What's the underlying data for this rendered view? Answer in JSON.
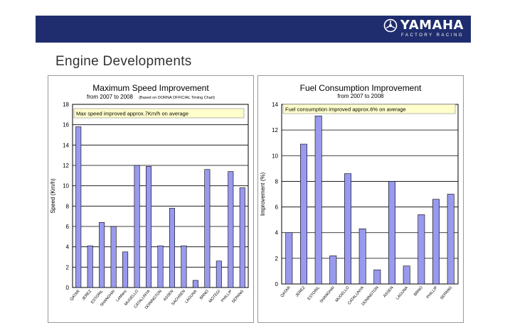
{
  "brand": {
    "name": "YAMAHA",
    "sub": "FACTORY RACING",
    "accent": "#1f2d6e"
  },
  "page": {
    "title": "Engine Developments"
  },
  "chart_data": [
    {
      "type": "bar",
      "title": "Maximum Speed Improvement",
      "subtitle": "from 2007 to 2008",
      "subtitle_note": "(Based on DORNA OFFICIAL Timing Chart)",
      "ylabel": "Speed (Km/h)",
      "ylim": [
        0,
        18
      ],
      "yticks": [
        0,
        2,
        4,
        6,
        8,
        10,
        12,
        14,
        16,
        18
      ],
      "grid": true,
      "annotation": "Max speed improved approx.7Km/h on average",
      "categories": [
        "QATAR",
        "JEREZ",
        "ESTORIL",
        "SHANGHAI",
        "LeMans",
        "MUGELLO",
        "CATALUNYA",
        "DONINGTON",
        "ASSEN",
        "SACHSEN",
        "LAGUNA",
        "BRNO",
        "MOTEGI",
        "PHILLIP",
        "SEPANG"
      ],
      "values": [
        15.8,
        4.1,
        6.4,
        6.0,
        3.5,
        12.0,
        11.9,
        4.1,
        7.8,
        4.1,
        0.7,
        11.6,
        2.6,
        11.4,
        9.8
      ],
      "bar_color": "#9999ee"
    },
    {
      "type": "bar",
      "title": "Fuel Consumption Improvement",
      "subtitle": "from 2007 to 2008",
      "ylabel": "Improvement (%)",
      "ylim": [
        0,
        14
      ],
      "yticks": [
        0,
        2,
        4,
        6,
        8,
        10,
        12,
        14
      ],
      "grid": true,
      "annotation": "Fuel consumption improved approx.6% on average",
      "categories": [
        "QATAR",
        "JEREZ",
        "ESTORIL",
        "SHANGHAI",
        "MUGELLO",
        "CATALUNYA",
        "DONINGTON",
        "ASSEN",
        "LAGUNA",
        "BRNO",
        "PHILLIP",
        "SEPANG"
      ],
      "values": [
        4.0,
        10.9,
        13.1,
        2.2,
        8.6,
        4.3,
        1.1,
        8.0,
        1.4,
        5.4,
        6.6,
        7.0
      ],
      "bar_color": "#9999ee"
    }
  ]
}
